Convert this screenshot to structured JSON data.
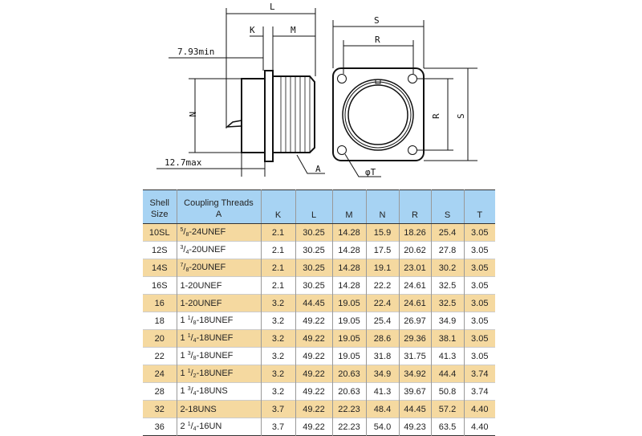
{
  "drawing": {
    "labels": {
      "L": "L",
      "K": "K",
      "M": "M",
      "min": "7.93min",
      "N": "N",
      "max": "12.7max",
      "A": "A",
      "S_top": "S",
      "R_top": "R",
      "R_side": "R",
      "S_side": "S",
      "T": "φT"
    }
  },
  "table": {
    "headers": {
      "shell_1": "Shell",
      "shell_2": "Size",
      "threads_1": "Coupling Threads",
      "threads_2": "A",
      "K": "K",
      "L": "L",
      "M": "M",
      "N": "N",
      "R": "R",
      "S": "S",
      "T": "T"
    },
    "colors": {
      "header": "#a7d3f3",
      "band": "#f5d9a0"
    },
    "rows": [
      {
        "size": "10SL",
        "whole": "",
        "num": "5",
        "den": "8",
        "rest": "-24UNEF",
        "K": "2.1",
        "L": "30.25",
        "M": "14.28",
        "N": "15.9",
        "R": "18.26",
        "S": "25.4",
        "T": "3.05"
      },
      {
        "size": "12S",
        "whole": "",
        "num": "3",
        "den": "4",
        "rest": "-20UNEF",
        "K": "2.1",
        "L": "30.25",
        "M": "14.28",
        "N": "17.5",
        "R": "20.62",
        "S": "27.8",
        "T": "3.05"
      },
      {
        "size": "14S",
        "whole": "",
        "num": "7",
        "den": "8",
        "rest": "-20UNEF",
        "K": "2.1",
        "L": "30.25",
        "M": "14.28",
        "N": "19.1",
        "R": "23.01",
        "S": "30.2",
        "T": "3.05"
      },
      {
        "size": "16S",
        "whole": "1",
        "num": "",
        "den": "",
        "rest": "-20UNEF",
        "K": "2.1",
        "L": "30.25",
        "M": "14.28",
        "N": "22.2",
        "R": "24.61",
        "S": "32.5",
        "T": "3.05"
      },
      {
        "size": "16",
        "whole": "1",
        "num": "",
        "den": "",
        "rest": "-20UNEF",
        "K": "3.2",
        "L": "44.45",
        "M": "19.05",
        "N": "22.4",
        "R": "24.61",
        "S": "32.5",
        "T": "3.05"
      },
      {
        "size": "18",
        "whole": "1 ",
        "num": "1",
        "den": "8",
        "rest": "-18UNEF",
        "K": "3.2",
        "L": "49.22",
        "M": "19.05",
        "N": "25.4",
        "R": "26.97",
        "S": "34.9",
        "T": "3.05"
      },
      {
        "size": "20",
        "whole": "1 ",
        "num": "1",
        "den": "4",
        "rest": "-18UNEF",
        "K": "3.2",
        "L": "49.22",
        "M": "19.05",
        "N": "28.6",
        "R": "29.36",
        "S": "38.1",
        "T": "3.05"
      },
      {
        "size": "22",
        "whole": "1 ",
        "num": "3",
        "den": "8",
        "rest": "-18UNEF",
        "K": "3.2",
        "L": "49.22",
        "M": "19.05",
        "N": "31.8",
        "R": "31.75",
        "S": "41.3",
        "T": "3.05"
      },
      {
        "size": "24",
        "whole": "1 ",
        "num": "1",
        "den": "2",
        "rest": "-18UNEF",
        "K": "3.2",
        "L": "49.22",
        "M": "20.63",
        "N": "34.9",
        "R": "34.92",
        "S": "44.4",
        "T": "3.74"
      },
      {
        "size": "28",
        "whole": "1 ",
        "num": "3",
        "den": "4",
        "rest": "-18UNS",
        "K": "3.2",
        "L": "49.22",
        "M": "20.63",
        "N": "41.3",
        "R": "39.67",
        "S": "50.8",
        "T": "3.74"
      },
      {
        "size": "32",
        "whole": "2",
        "num": "",
        "den": "",
        "rest": "-18UNS",
        "K": "3.7",
        "L": "49.22",
        "M": "22.23",
        "N": "48.4",
        "R": "44.45",
        "S": "57.2",
        "T": "4.40"
      },
      {
        "size": "36",
        "whole": "2 ",
        "num": "1",
        "den": "4",
        "rest": "-16UN",
        "K": "3.7",
        "L": "49.22",
        "M": "22.23",
        "N": "54.0",
        "R": "49.23",
        "S": "63.5",
        "T": "4.40"
      }
    ]
  }
}
